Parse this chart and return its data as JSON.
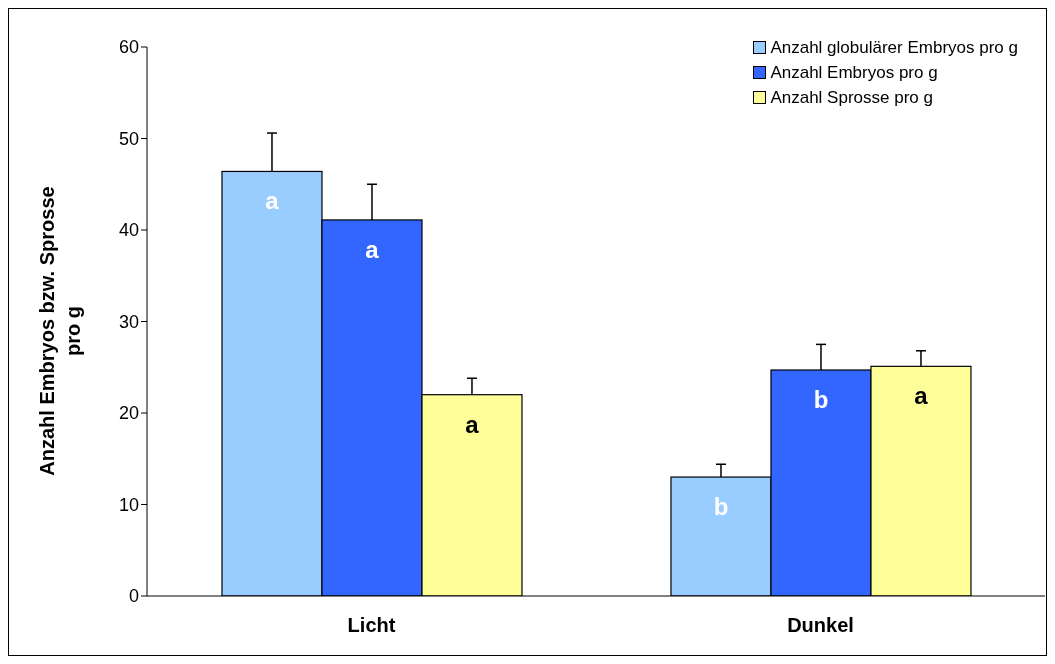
{
  "chart_data": {
    "type": "bar",
    "ylabel": "Anzahl Embryos bzw. Sprosse pro g",
    "categories": [
      "Licht",
      "Dunkel"
    ],
    "series": [
      {
        "name": "Anzahl globulärer Embryos pro g",
        "color": "#99ccff",
        "values": [
          46.4,
          13.0
        ],
        "errors": [
          [
            46.4,
            50.6
          ],
          [
            13.0,
            14.4
          ]
        ],
        "value_labels": [
          "a",
          "b"
        ]
      },
      {
        "name": "Anzahl Embryos pro g",
        "color": "#3366ff",
        "values": [
          41.1,
          24.7
        ],
        "errors": [
          [
            41.1,
            45.0
          ],
          [
            24.7,
            27.5
          ]
        ],
        "value_labels": [
          "a",
          "b"
        ]
      },
      {
        "name": "Anzahl Sprosse pro g",
        "color": "#ffff99",
        "values": [
          22.0,
          25.1
        ],
        "errors": [
          [
            22.0,
            23.8
          ],
          [
            25.1,
            26.8
          ]
        ],
        "value_labels": [
          "a",
          "a"
        ]
      }
    ],
    "ylim": [
      0,
      60
    ],
    "yticks": [
      0,
      10,
      20,
      30,
      40,
      50,
      60
    ],
    "grid": false,
    "legend": "top right"
  }
}
